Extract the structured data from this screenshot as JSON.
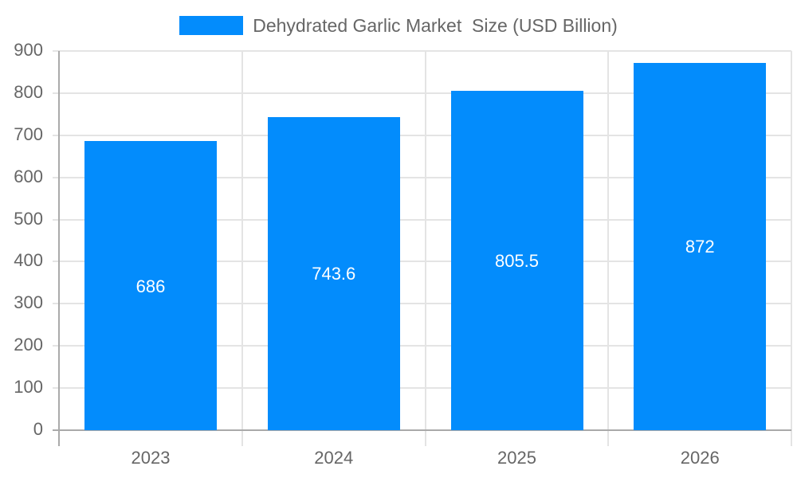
{
  "chart_data": {
    "type": "bar",
    "title": "",
    "categories": [
      "2023",
      "2024",
      "2025",
      "2026"
    ],
    "series": [
      {
        "name": "Dehydrated Garlic Market  Size (USD Billion)",
        "values": [
          686,
          743.6,
          805.5,
          872
        ],
        "color": "#038cfc"
      }
    ],
    "value_labels": [
      "686",
      "743.6",
      "805.5",
      "872"
    ],
    "xlabel": "",
    "ylabel": "",
    "ylim": [
      0,
      900
    ],
    "yticks": [
      "0",
      "100",
      "200",
      "300",
      "400",
      "500",
      "600",
      "700",
      "800",
      "900"
    ],
    "grid": true,
    "legend_position": "top"
  },
  "legend": {
    "label": "Dehydrated Garlic Market  Size (USD Billion)",
    "color": "#038cfc"
  }
}
